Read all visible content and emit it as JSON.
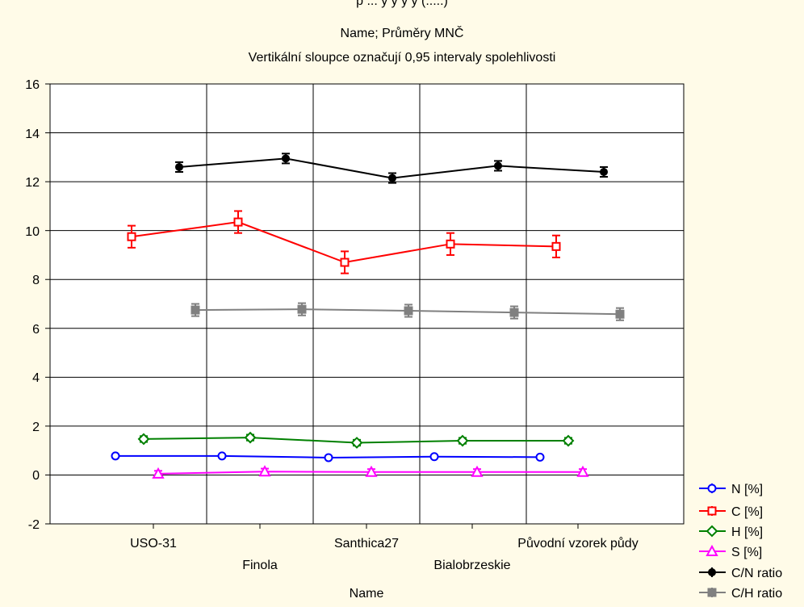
{
  "top_cut_text": "p ... y y y y (.....)",
  "chart_data": {
    "type": "line",
    "title": "Name; Průměry MNČ",
    "subtitle": "Vertikální sloupce označují 0,95 intervaly spolehlivosti",
    "xlabel": "Name",
    "ylabel": "",
    "ylim": [
      -2,
      16
    ],
    "yticks": [
      -2,
      0,
      2,
      4,
      6,
      8,
      10,
      12,
      14,
      16
    ],
    "grid": true,
    "legend_position": "right-bottom",
    "categories": [
      "USO-31",
      "Finola",
      "Santhica27",
      "Bialobrzeskie",
      "Původní vzorek půdy"
    ],
    "series": [
      {
        "name": "N [%]",
        "color": "#0000ff",
        "marker": "circle-open",
        "values": [
          0.78,
          0.78,
          0.71,
          0.75,
          0.73
        ],
        "ci": [
          0.05,
          0.05,
          0.05,
          0.05,
          0.05
        ]
      },
      {
        "name": "C [%]",
        "color": "#ff0000",
        "marker": "square-open",
        "values": [
          9.75,
          10.35,
          8.7,
          9.45,
          9.35
        ],
        "ci": [
          0.45,
          0.45,
          0.45,
          0.45,
          0.45
        ]
      },
      {
        "name": "H [%]",
        "color": "#008000",
        "marker": "diamond-open",
        "values": [
          1.47,
          1.53,
          1.32,
          1.4,
          1.4
        ],
        "ci": [
          0.12,
          0.12,
          0.12,
          0.12,
          0.12
        ]
      },
      {
        "name": "S [%]",
        "color": "#ff00ff",
        "marker": "triangle-open",
        "values": [
          0.05,
          0.14,
          0.12,
          0.12,
          0.12
        ],
        "ci": [
          0.12,
          0.12,
          0.12,
          0.12,
          0.12
        ]
      },
      {
        "name": "C/N ratio",
        "color": "#000000",
        "marker": "circle-filled",
        "values": [
          12.6,
          12.95,
          12.15,
          12.65,
          12.4
        ],
        "ci": [
          0.2,
          0.2,
          0.2,
          0.2,
          0.2
        ]
      },
      {
        "name": "C/H ratio",
        "color": "#808080",
        "marker": "square-filled",
        "values": [
          6.75,
          6.78,
          6.72,
          6.65,
          6.58
        ],
        "ci": [
          0.25,
          0.25,
          0.25,
          0.25,
          0.25
        ]
      }
    ]
  }
}
